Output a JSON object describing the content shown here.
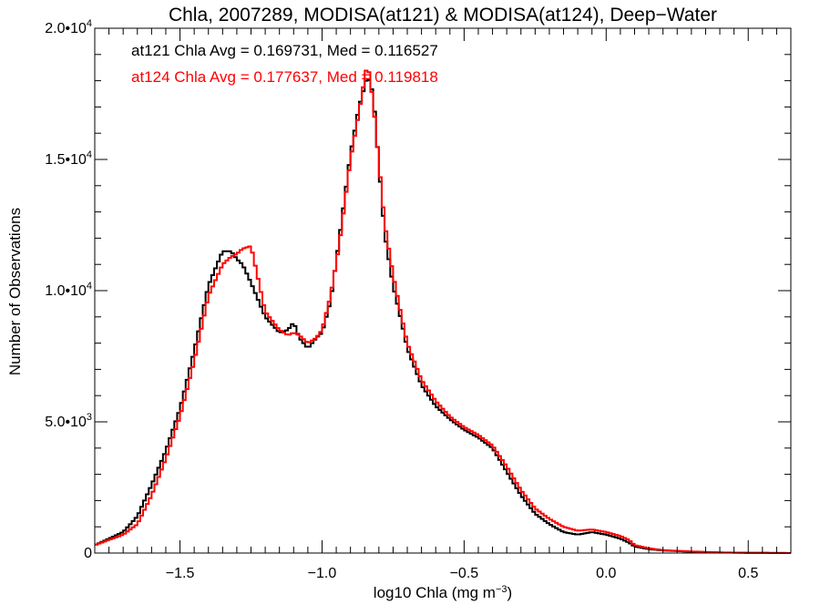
{
  "chart_data": {
    "type": "line",
    "title": "Chla, 2007289, MODISA(at121) & MODISA(at124), Deep−Water",
    "xlabel_main": "log10 Chla (mg m",
    "xlabel_sup": "−3",
    "xlabel_end": ")",
    "ylabel": "Number of Observations",
    "xlim": [
      -1.8,
      0.65
    ],
    "ylim": [
      0,
      20000
    ],
    "x_ticks": [
      {
        "value": -1.5,
        "label": "−1.5"
      },
      {
        "value": -1.0,
        "label": "−1.0"
      },
      {
        "value": -0.5,
        "label": "−0.5"
      },
      {
        "value": 0.0,
        "label": "0.0"
      },
      {
        "value": 0.5,
        "label": "0.5"
      }
    ],
    "y_ticks": [
      {
        "value": 0,
        "label": "0",
        "sup": ""
      },
      {
        "value": 5000,
        "label": "5.0•10",
        "sup": "3"
      },
      {
        "value": 10000,
        "label": "1.0•10",
        "sup": "4"
      },
      {
        "value": 15000,
        "label": "1.5•10",
        "sup": "4"
      },
      {
        "value": 20000,
        "label": "2.0•10",
        "sup": "4"
      }
    ],
    "annotations": [
      {
        "text": "at121 Chla Avg = 0.169731, Med = 0.116527",
        "color": "#000000"
      },
      {
        "text": "at124 Chla Avg = 0.177637, Med = 0.119818",
        "color": "#ff0000"
      }
    ],
    "series": [
      {
        "key": "at121",
        "color": "#000000",
        "x": [
          -1.8,
          -1.7,
          -1.65,
          -1.6,
          -1.55,
          -1.5,
          -1.45,
          -1.4,
          -1.35,
          -1.32,
          -1.3,
          -1.28,
          -1.25,
          -1.2,
          -1.15,
          -1.12,
          -1.1,
          -1.08,
          -1.05,
          -1.02,
          -1.0,
          -0.97,
          -0.94,
          -0.9,
          -0.87,
          -0.84,
          -0.82,
          -0.8,
          -0.78,
          -0.75,
          -0.72,
          -0.7,
          -0.65,
          -0.6,
          -0.55,
          -0.5,
          -0.45,
          -0.4,
          -0.35,
          -0.3,
          -0.25,
          -0.2,
          -0.15,
          -0.1,
          -0.05,
          0.0,
          0.05,
          0.08,
          0.1,
          0.15,
          0.2,
          0.3,
          0.4,
          0.5,
          0.6,
          0.65
        ],
        "y": [
          300,
          800,
          1400,
          2600,
          3900,
          5500,
          7700,
          10200,
          11500,
          11500,
          11200,
          11000,
          10300,
          9000,
          8400,
          8500,
          8800,
          8200,
          7800,
          8200,
          8400,
          9600,
          11900,
          15200,
          17000,
          18200,
          17500,
          14800,
          12200,
          10200,
          8800,
          7800,
          6400,
          5600,
          5100,
          4700,
          4400,
          4000,
          3100,
          2200,
          1500,
          1100,
          800,
          700,
          800,
          700,
          550,
          400,
          250,
          150,
          100,
          50,
          20,
          10,
          5,
          0
        ]
      },
      {
        "key": "at124",
        "color": "#ff0000",
        "x": [
          -1.8,
          -1.7,
          -1.65,
          -1.6,
          -1.55,
          -1.5,
          -1.45,
          -1.4,
          -1.35,
          -1.32,
          -1.3,
          -1.28,
          -1.25,
          -1.2,
          -1.15,
          -1.12,
          -1.1,
          -1.08,
          -1.05,
          -1.02,
          -1.0,
          -0.97,
          -0.94,
          -0.9,
          -0.87,
          -0.84,
          -0.82,
          -0.8,
          -0.78,
          -0.75,
          -0.72,
          -0.7,
          -0.65,
          -0.6,
          -0.55,
          -0.5,
          -0.45,
          -0.4,
          -0.35,
          -0.3,
          -0.25,
          -0.2,
          -0.15,
          -0.1,
          -0.05,
          0.0,
          0.05,
          0.08,
          0.1,
          0.15,
          0.2,
          0.3,
          0.4,
          0.5,
          0.6,
          0.65
        ],
        "y": [
          300,
          700,
          1100,
          2200,
          3600,
          5200,
          7300,
          9800,
          11000,
          11300,
          11400,
          11600,
          11700,
          9200,
          8500,
          8300,
          8400,
          8300,
          8000,
          8200,
          8500,
          9800,
          11700,
          15000,
          16800,
          18700,
          17200,
          14900,
          12600,
          10600,
          9000,
          8000,
          6600,
          5800,
          5200,
          4800,
          4500,
          4100,
          3300,
          2400,
          1700,
          1300,
          1000,
          850,
          900,
          800,
          650,
          500,
          300,
          180,
          110,
          60,
          25,
          10,
          5,
          0
        ]
      }
    ]
  }
}
